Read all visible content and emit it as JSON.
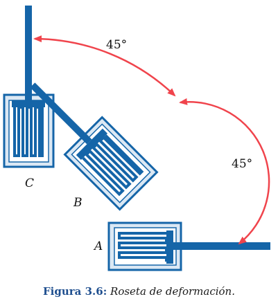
{
  "diagram": {
    "angles": {
      "upper": "45°",
      "lower": "45°"
    },
    "gauges": {
      "a": "A",
      "b": "B",
      "c": "C"
    },
    "colors": {
      "gauge_blue": "#1565a8",
      "arrow_red": "#f0444c",
      "caption_blue": "#1f4f8f"
    }
  },
  "caption": {
    "figure": "Figura 3.6:",
    "text": "Roseta de deformación."
  }
}
